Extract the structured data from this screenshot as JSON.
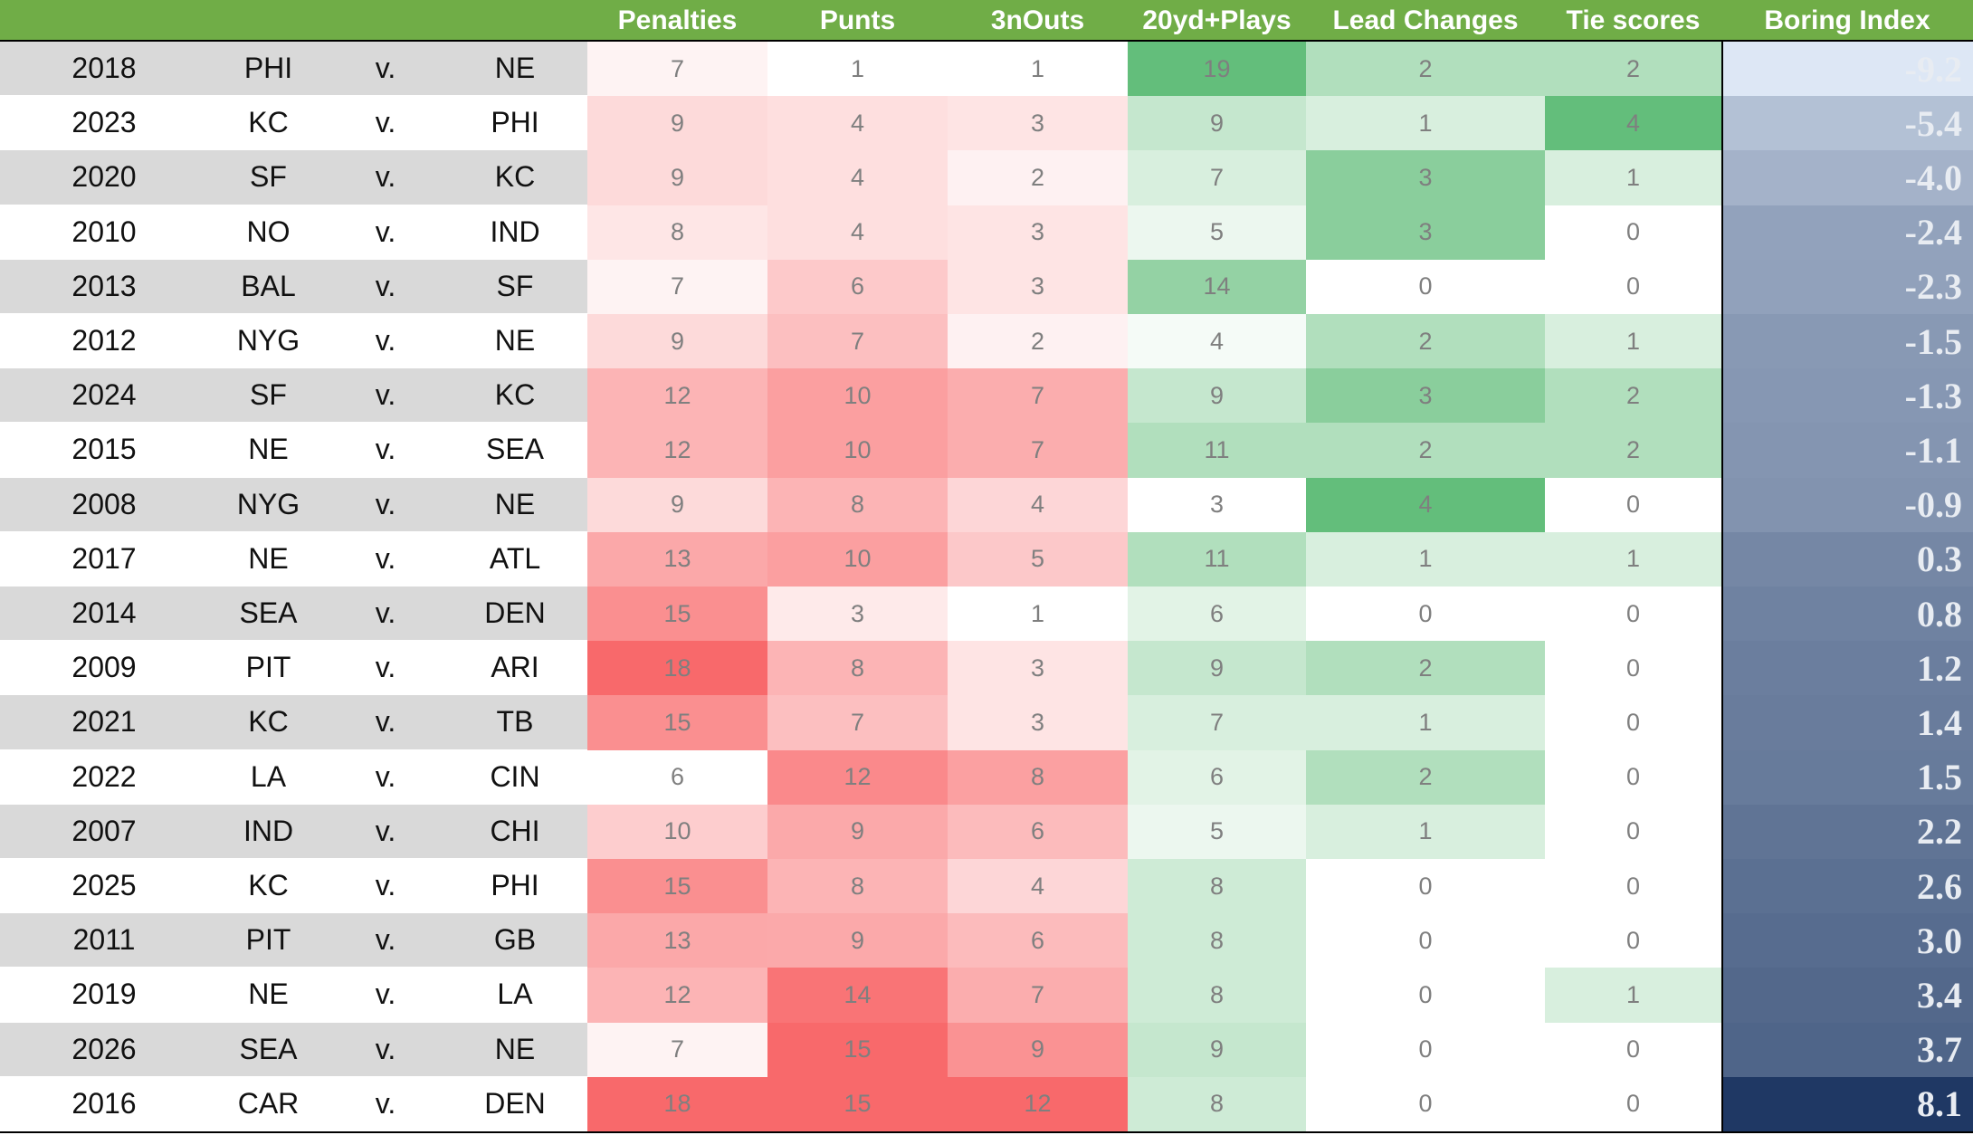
{
  "table": {
    "columns": [
      "Penalties",
      "Punts",
      "3nOuts",
      "20yd+Plays",
      "Lead Changes",
      "Tie scores",
      "Boring Index"
    ],
    "rows": [
      [
        "2018",
        "PHI",
        "v.",
        "NE",
        "7",
        "1",
        "1",
        "19",
        "2",
        "2",
        "-9.2"
      ],
      [
        "2023",
        "KC",
        "v.",
        "PHI",
        "9",
        "4",
        "3",
        "9",
        "1",
        "4",
        "-5.4"
      ],
      [
        "2020",
        "SF",
        "v.",
        "KC",
        "9",
        "4",
        "2",
        "7",
        "3",
        "1",
        "-4.0"
      ],
      [
        "2010",
        "NO",
        "v.",
        "IND",
        "8",
        "4",
        "3",
        "5",
        "3",
        "0",
        "-2.4"
      ],
      [
        "2013",
        "BAL",
        "v.",
        "SF",
        "7",
        "6",
        "3",
        "14",
        "0",
        "0",
        "-2.3"
      ],
      [
        "2012",
        "NYG",
        "v.",
        "NE",
        "9",
        "7",
        "2",
        "4",
        "2",
        "1",
        "-1.5"
      ],
      [
        "2024",
        "SF",
        "v.",
        "KC",
        "12",
        "10",
        "7",
        "9",
        "3",
        "2",
        "-1.3"
      ],
      [
        "2015",
        "NE",
        "v.",
        "SEA",
        "12",
        "10",
        "7",
        "11",
        "2",
        "2",
        "-1.1"
      ],
      [
        "2008",
        "NYG",
        "v.",
        "NE",
        "9",
        "8",
        "4",
        "3",
        "4",
        "0",
        "-0.9"
      ],
      [
        "2017",
        "NE",
        "v.",
        "ATL",
        "13",
        "10",
        "5",
        "11",
        "1",
        "1",
        "0.3"
      ],
      [
        "2014",
        "SEA",
        "v.",
        "DEN",
        "15",
        "3",
        "1",
        "6",
        "0",
        "0",
        "0.8"
      ],
      [
        "2009",
        "PIT",
        "v.",
        "ARI",
        "18",
        "8",
        "3",
        "9",
        "2",
        "0",
        "1.2"
      ],
      [
        "2021",
        "KC",
        "v.",
        "TB",
        "15",
        "7",
        "3",
        "7",
        "1",
        "0",
        "1.4"
      ],
      [
        "2022",
        "LA",
        "v.",
        "CIN",
        "6",
        "12",
        "8",
        "6",
        "2",
        "0",
        "1.5"
      ],
      [
        "2007",
        "IND",
        "v.",
        "CHI",
        "10",
        "9",
        "6",
        "5",
        "1",
        "0",
        "2.2"
      ],
      [
        "2025",
        "KC",
        "v.",
        "PHI",
        "15",
        "8",
        "4",
        "8",
        "0",
        "0",
        "2.6"
      ],
      [
        "2011",
        "PIT",
        "v.",
        "GB",
        "13",
        "9",
        "6",
        "8",
        "0",
        "0",
        "3.0"
      ],
      [
        "2019",
        "NE",
        "v.",
        "LA",
        "12",
        "14",
        "7",
        "8",
        "0",
        "1",
        "3.4"
      ],
      [
        "2026",
        "SEA",
        "v.",
        "NE",
        "7",
        "15",
        "9",
        "9",
        "0",
        "0",
        "3.7"
      ],
      [
        "2016",
        "CAR",
        "v.",
        "DEN",
        "18",
        "15",
        "12",
        "8",
        "0",
        "0",
        "8.1"
      ]
    ]
  }
}
